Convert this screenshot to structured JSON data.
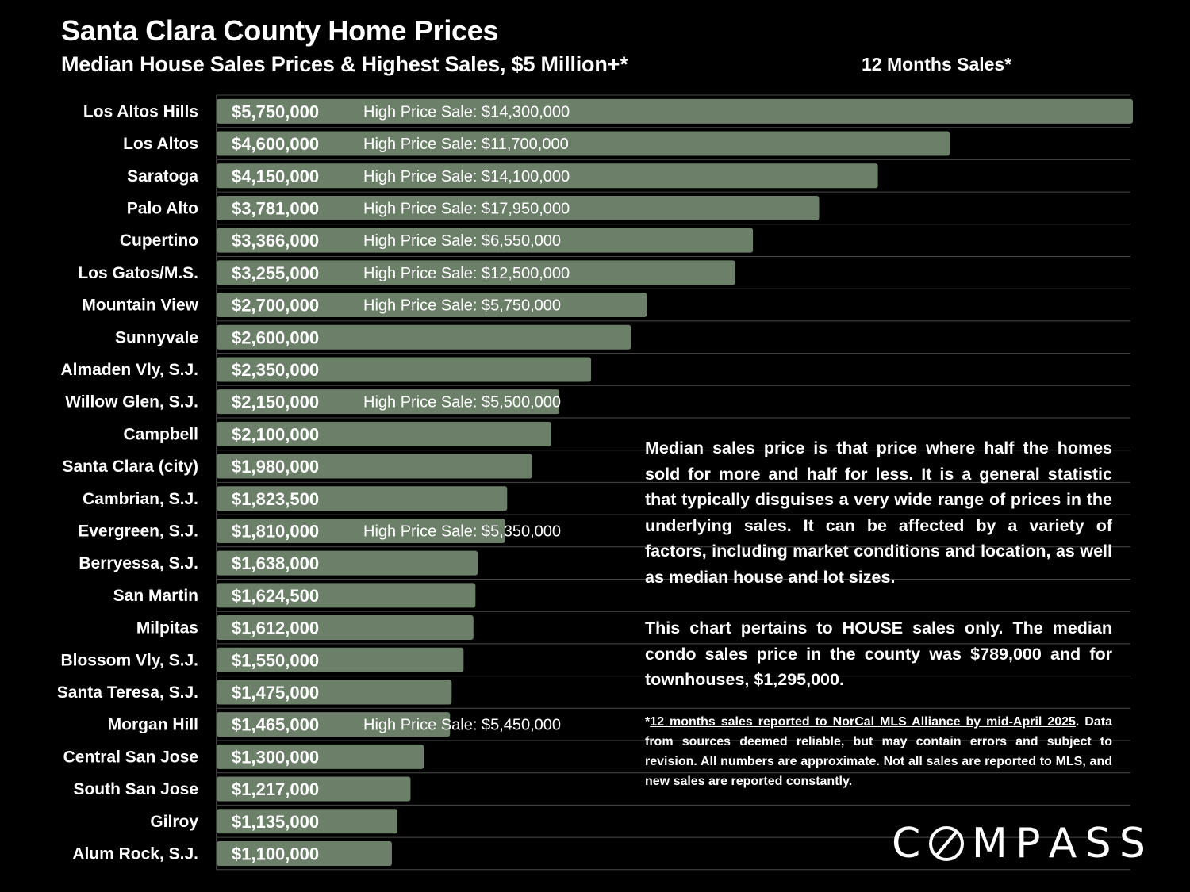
{
  "header": {
    "title": "Santa Clara County Home Prices",
    "subtitle": "Median House Sales Prices & Highest Sales, $5 Million+*",
    "period": "12 Months Sales*"
  },
  "colors": {
    "background": "#000000",
    "bar": "#6b7f69",
    "text": "#ffffff",
    "gridline": "#4a4a4a"
  },
  "chart_data": {
    "type": "bar",
    "orientation": "horizontal",
    "grid": true,
    "legend": "none",
    "xlim": [
      0,
      5750000
    ],
    "high_sale_prefix": "High Price Sale:",
    "categories": [
      "Los Altos Hills",
      "Los Altos",
      "Saratoga",
      "Palo Alto",
      "Cupertino",
      "Los Gatos/M.S.",
      "Mountain View",
      "Sunnyvale",
      "Almaden Vly, S.J.",
      "Willow Glen, S.J.",
      "Campbell",
      "Santa Clara (city)",
      "Cambrian, S.J.",
      "Evergreen, S.J.",
      "Berryessa, S.J.",
      "San Martin",
      "Milpitas",
      "Blossom Vly, S.J.",
      "Santa Teresa, S.J.",
      "Morgan Hill",
      "Central San Jose",
      "South San Jose",
      "Gilroy",
      "Alum Rock, S.J."
    ],
    "values": [
      5750000,
      4600000,
      4150000,
      3781000,
      3366000,
      3255000,
      2700000,
      2600000,
      2350000,
      2150000,
      2100000,
      1980000,
      1823500,
      1810000,
      1638000,
      1624500,
      1612000,
      1550000,
      1475000,
      1465000,
      1300000,
      1217000,
      1135000,
      1100000
    ],
    "value_labels": [
      "$5,750,000",
      "$4,600,000",
      "$4,150,000",
      "$3,781,000",
      "$3,366,000",
      "$3,255,000",
      "$2,700,000",
      "$2,600,000",
      "$2,350,000",
      "$2,150,000",
      "$2,100,000",
      "$1,980,000",
      "$1,823,500",
      "$1,810,000",
      "$1,638,000",
      "$1,624,500",
      "$1,612,000",
      "$1,550,000",
      "$1,475,000",
      "$1,465,000",
      "$1,300,000",
      "$1,217,000",
      "$1,135,000",
      "$1,100,000"
    ],
    "high_sales": [
      "$14,300,000",
      "$11,700,000",
      "$14,100,000",
      "$17,950,000",
      "$6,550,000",
      "$12,500,000",
      "$5,750,000",
      null,
      null,
      "$5,500,000",
      null,
      null,
      null,
      "$5,350,000",
      null,
      null,
      null,
      null,
      null,
      "$5,450,000",
      null,
      null,
      null,
      null
    ]
  },
  "note": {
    "p1": "Median sales price is that price where half the homes sold for more and half for less. It is a general statistic that typically disguises a very wide range of prices in the underlying sales. It can be affected by a variety of factors, including market conditions and location, as well as median house and lot sizes.",
    "p2": "This chart pertains to HOUSE sales only. The median condo sales price in the county was $789,000 and for townhouses, $1,295,000."
  },
  "footnote": {
    "star": "*",
    "underlined": "12 months sales reported to NorCal MLS Alliance by mid-April 2025",
    "rest": ". Data from sources deemed reliable, but may contain errors and subject to revision. All numbers are approximate. Not all sales are reported to MLS, and new sales are reported constantly."
  },
  "logo": {
    "text": "COMPASS",
    "letters_before": "C",
    "letters_after": [
      "M",
      "P",
      "A",
      "S",
      "S"
    ]
  }
}
